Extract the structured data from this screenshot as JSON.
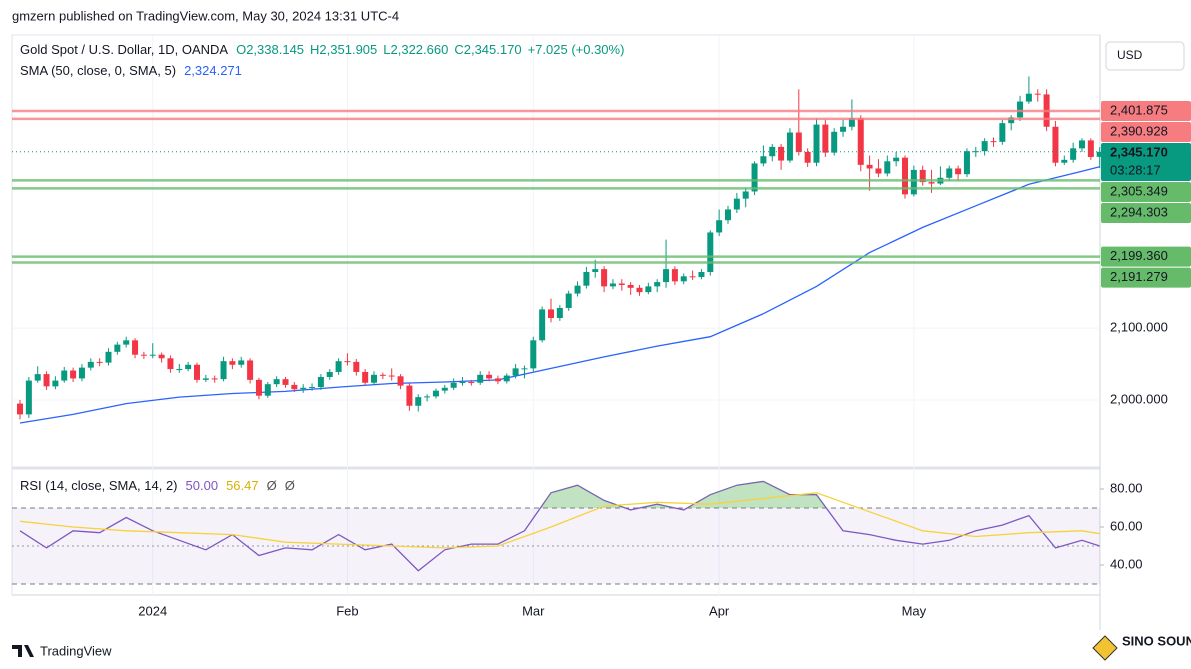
{
  "chart_data": {
    "type": "candlestick",
    "publisher": "gmzern published on TradingView.com, May 30, 2024 13:31 UTC-4",
    "symbol": "Gold Spot / U.S. Dollar, 1D, OANDA",
    "ohlc_text": [
      "O2,338.145",
      "H2,351.905",
      "L2,322.660",
      "C2,345.170",
      "+7.025 (+0.30%)"
    ],
    "brand": "TradingView",
    "watermark": "SINO SOUND",
    "currency": "USD",
    "up_color": "#089981",
    "down_color": "#f23645",
    "candles": [
      [
        1995,
        2000,
        1973,
        1980
      ],
      [
        1980,
        2032,
        1975,
        2027
      ],
      [
        2027,
        2047,
        2024,
        2036
      ],
      [
        2036,
        2040,
        2014,
        2019
      ],
      [
        2019,
        2033,
        2015,
        2027
      ],
      [
        2027,
        2046,
        2024,
        2041
      ],
      [
        2041,
        2045,
        2025,
        2030
      ],
      [
        2030,
        2050,
        2026,
        2045
      ],
      [
        2045,
        2058,
        2041,
        2053
      ],
      [
        2053,
        2058,
        2047,
        2052
      ],
      [
        2052,
        2072,
        2048,
        2067
      ],
      [
        2067,
        2081,
        2063,
        2077
      ],
      [
        2077,
        2088,
        2073,
        2083
      ],
      [
        2083,
        2086,
        2058,
        2063
      ],
      [
        2063,
        2067,
        2057,
        2062
      ],
      [
        2062,
        2079,
        2058,
        2063
      ],
      [
        2063,
        2066,
        2052,
        2058
      ],
      [
        2058,
        2062,
        2038,
        2043
      ],
      [
        2043,
        2050,
        2038,
        2043
      ],
      [
        2043,
        2053,
        2040,
        2049
      ],
      [
        2049,
        2052,
        2024,
        2028
      ],
      [
        2028,
        2035,
        2025,
        2030
      ],
      [
        2030,
        2034,
        2024,
        2029
      ],
      [
        2029,
        2060,
        2026,
        2054
      ],
      [
        2054,
        2058,
        2043,
        2049
      ],
      [
        2049,
        2060,
        2045,
        2055
      ],
      [
        2055,
        2058,
        2023,
        2028
      ],
      [
        2028,
        2031,
        2001,
        2006
      ],
      [
        2006,
        2025,
        2003,
        2022
      ],
      [
        2022,
        2033,
        2018,
        2029
      ],
      [
        2029,
        2032,
        2017,
        2021
      ],
      [
        2021,
        2025,
        2011,
        2015
      ],
      [
        2015,
        2022,
        2010,
        2017
      ],
      [
        2017,
        2023,
        2013,
        2018
      ],
      [
        2018,
        2036,
        2014,
        2032
      ],
      [
        2032,
        2043,
        2028,
        2039
      ],
      [
        2039,
        2058,
        2035,
        2054
      ],
      [
        2054,
        2065,
        2048,
        2053
      ],
      [
        2053,
        2057,
        2034,
        2039
      ],
      [
        2039,
        2043,
        2020,
        2024
      ],
      [
        2024,
        2040,
        2021,
        2035
      ],
      [
        2035,
        2038,
        2029,
        2034
      ],
      [
        2034,
        2044,
        2027,
        2033
      ],
      [
        2033,
        2036,
        2015,
        2020
      ],
      [
        2020,
        2023,
        1985,
        1992
      ],
      [
        1992,
        2008,
        1984,
        2004
      ],
      [
        2004,
        2008,
        1998,
        2005
      ],
      [
        2005,
        2016,
        2002,
        2013
      ],
      [
        2013,
        2021,
        2009,
        2017
      ],
      [
        2017,
        2030,
        2014,
        2024
      ],
      [
        2024,
        2032,
        2020,
        2025
      ],
      [
        2025,
        2028,
        2020,
        2024
      ],
      [
        2024,
        2040,
        2021,
        2035
      ],
      [
        2035,
        2040,
        2026,
        2030
      ],
      [
        2030,
        2034,
        2022,
        2026
      ],
      [
        2026,
        2037,
        2023,
        2034
      ],
      [
        2034,
        2050,
        2030,
        2044
      ],
      [
        2044,
        2048,
        2030,
        2044
      ],
      [
        2044,
        2088,
        2040,
        2083
      ],
      [
        2083,
        2130,
        2080,
        2126
      ],
      [
        2126,
        2141,
        2108,
        2114
      ],
      [
        2114,
        2132,
        2110,
        2128
      ],
      [
        2128,
        2152,
        2124,
        2148
      ],
      [
        2148,
        2165,
        2144,
        2159
      ],
      [
        2159,
        2185,
        2155,
        2178
      ],
      [
        2178,
        2195,
        2170,
        2182
      ],
      [
        2182,
        2186,
        2150,
        2158
      ],
      [
        2158,
        2168,
        2154,
        2162
      ],
      [
        2162,
        2168,
        2152,
        2160
      ],
      [
        2160,
        2164,
        2146,
        2156
      ],
      [
        2156,
        2160,
        2145,
        2150
      ],
      [
        2150,
        2163,
        2147,
        2158
      ],
      [
        2158,
        2168,
        2150,
        2164
      ],
      [
        2164,
        2223,
        2156,
        2182
      ],
      [
        2182,
        2186,
        2160,
        2165
      ],
      [
        2165,
        2176,
        2161,
        2172
      ],
      [
        2172,
        2180,
        2167,
        2171
      ],
      [
        2171,
        2182,
        2168,
        2178
      ],
      [
        2178,
        2236,
        2173,
        2233
      ],
      [
        2233,
        2265,
        2228,
        2250
      ],
      [
        2250,
        2270,
        2245,
        2265
      ],
      [
        2265,
        2288,
        2260,
        2280
      ],
      [
        2280,
        2295,
        2268,
        2290
      ],
      [
        2290,
        2332,
        2285,
        2329
      ],
      [
        2329,
        2354,
        2325,
        2339
      ],
      [
        2339,
        2356,
        2332,
        2352
      ],
      [
        2352,
        2356,
        2320,
        2333
      ],
      [
        2333,
        2378,
        2330,
        2372
      ],
      [
        2372,
        2432,
        2340,
        2345
      ],
      [
        2345,
        2350,
        2324,
        2330
      ],
      [
        2330,
        2392,
        2325,
        2383
      ],
      [
        2383,
        2390,
        2338,
        2344
      ],
      [
        2344,
        2378,
        2340,
        2373
      ],
      [
        2373,
        2390,
        2366,
        2380
      ],
      [
        2380,
        2418,
        2375,
        2392
      ],
      [
        2392,
        2396,
        2318,
        2327
      ],
      [
        2327,
        2340,
        2291,
        2322
      ],
      [
        2322,
        2335,
        2310,
        2315
      ],
      [
        2315,
        2340,
        2311,
        2332
      ],
      [
        2332,
        2345,
        2325,
        2337
      ],
      [
        2337,
        2340,
        2280,
        2286
      ],
      [
        2286,
        2326,
        2283,
        2320
      ],
      [
        2320,
        2326,
        2298,
        2303
      ],
      [
        2303,
        2320,
        2288,
        2301
      ],
      [
        2301,
        2325,
        2299,
        2309
      ],
      [
        2309,
        2326,
        2304,
        2322
      ],
      [
        2322,
        2326,
        2305,
        2314
      ],
      [
        2314,
        2350,
        2310,
        2346
      ],
      [
        2346,
        2352,
        2338,
        2346
      ],
      [
        2346,
        2364,
        2340,
        2360
      ],
      [
        2360,
        2365,
        2352,
        2359
      ],
      [
        2359,
        2390,
        2355,
        2385
      ],
      [
        2385,
        2396,
        2375,
        2393
      ],
      [
        2393,
        2423,
        2388,
        2415
      ],
      [
        2415,
        2450,
        2412,
        2426
      ],
      [
        2426,
        2432,
        2415,
        2425
      ],
      [
        2425,
        2432,
        2374,
        2380
      ],
      [
        2380,
        2388,
        2325,
        2330
      ],
      [
        2330,
        2340,
        2327,
        2334
      ],
      [
        2334,
        2358,
        2330,
        2350
      ],
      [
        2350,
        2364,
        2345,
        2361
      ],
      [
        2361,
        2364,
        2334,
        2338
      ],
      [
        2338.145,
        2351.905,
        2322.66,
        2345.17
      ]
    ],
    "xticks": [
      {
        "value": 15,
        "label": "2024"
      },
      {
        "value": 37,
        "label": "Feb"
      },
      {
        "value": 58,
        "label": "Mar"
      },
      {
        "value": 79,
        "label": "Apr"
      },
      {
        "value": 101,
        "label": "May"
      }
    ],
    "ylim": [
      1909.6,
      2507.6
    ],
    "yticks": [
      {
        "value": 2000,
        "label": "2,000.000"
      },
      {
        "value": 2100,
        "label": "2,100.000"
      }
    ],
    "levels": [
      {
        "value": 2401.875,
        "label": "2,401.875",
        "color": "#f77c80"
      },
      {
        "value": 2390.928,
        "label": "2,390.928",
        "color": "#f77c80"
      },
      {
        "value": 2305.349,
        "label": "2,305.349",
        "color": "#66bb6a"
      },
      {
        "value": 2294.303,
        "label": "2,294.303",
        "color": "#66bb6a"
      },
      {
        "value": 2199.36,
        "label": "2,199.360",
        "color": "#66bb6a"
      },
      {
        "value": 2191.279,
        "label": "2,191.279",
        "color": "#66bb6a"
      }
    ],
    "last_price": {
      "value": 2345.17,
      "label": "2,345.170",
      "countdown": "03:28:17",
      "color": "#089981"
    },
    "sma": {
      "name": "SMA (50, close, 0, SMA, 5)",
      "value_label": "2,324.271",
      "color": "#2962ff",
      "x": [
        0,
        6,
        12,
        18,
        24,
        30,
        36,
        42,
        48,
        54,
        60,
        66,
        72,
        78,
        84,
        90,
        96,
        102,
        108,
        114,
        120,
        122
      ],
      "values": [
        1968,
        1980,
        1995,
        2004,
        2009,
        2012,
        2018,
        2023,
        2025,
        2028,
        2044,
        2060,
        2075,
        2088,
        2120,
        2158,
        2205,
        2240,
        2270,
        2300,
        2318,
        2324.271
      ]
    },
    "rsi": {
      "name": "RSI (14, close, SMA, 14, 2)",
      "value_label": "50.00",
      "ma_label": "56.47",
      "flags": [
        "Ø",
        "Ø"
      ],
      "color": "#7e57c2",
      "ma_color": "#f7d23c",
      "x": [
        0,
        3,
        6,
        9,
        12,
        15,
        18,
        21,
        24,
        27,
        30,
        33,
        36,
        39,
        42,
        45,
        48,
        51,
        54,
        57,
        60,
        63,
        66,
        69,
        72,
        75,
        78,
        81,
        84,
        87,
        90,
        93,
        96,
        99,
        102,
        105,
        108,
        111,
        114,
        117,
        120,
        122
      ],
      "values": [
        58,
        49,
        58,
        57,
        65,
        58,
        53,
        48,
        56,
        45,
        49,
        48,
        56,
        48,
        51,
        37,
        48,
        51,
        51,
        58,
        78,
        82,
        74,
        69,
        72,
        69,
        77,
        82,
        84,
        77,
        77,
        58,
        56,
        53,
        51,
        53,
        58,
        61,
        66,
        49,
        53,
        50
      ],
      "ma_x": [
        0,
        6,
        12,
        18,
        24,
        30,
        36,
        42,
        48,
        54,
        60,
        66,
        72,
        78,
        84,
        90,
        96,
        102,
        108,
        114,
        120,
        122
      ],
      "ma_values": [
        63,
        60,
        58,
        57,
        56,
        52,
        51,
        50,
        49,
        50,
        60,
        71,
        73,
        72,
        75,
        78,
        68,
        58,
        55,
        57,
        58,
        56.47
      ],
      "ylim": [
        24.2,
        90
      ],
      "yticks": [
        {
          "value": 40,
          "label": "40.00"
        },
        {
          "value": 60,
          "label": "60.00"
        },
        {
          "value": 80,
          "label": "80.00"
        }
      ],
      "bands": [
        30,
        70
      ],
      "mid": 50
    }
  }
}
